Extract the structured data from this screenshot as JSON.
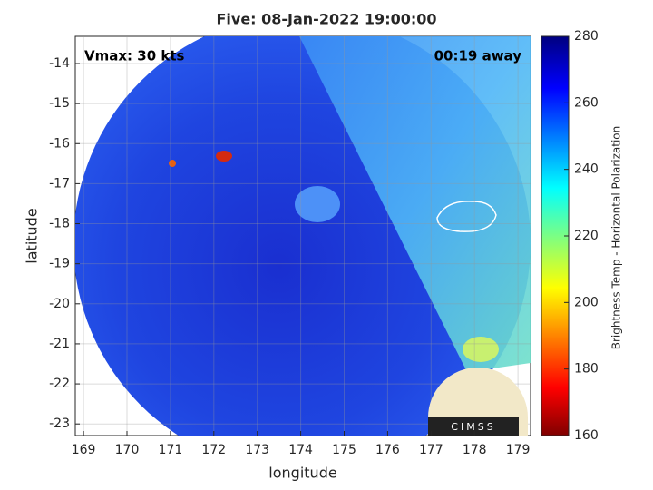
{
  "chart_data": {
    "type": "map",
    "title": "Five: 08-Jan-2022 19:00:00",
    "annotations": [
      "Vmax: 30 kts",
      "00:19 away"
    ],
    "xlabel": "longitude",
    "ylabel": "latitude",
    "xlim": [
      168.81,
      179.29
    ],
    "ylim": [
      -23.29,
      -13.32
    ],
    "xticks": [
      169,
      170,
      171,
      172,
      173,
      174,
      175,
      176,
      177,
      178,
      179
    ],
    "yticks": [
      -14,
      -15,
      -16,
      -17,
      -18,
      -19,
      -20,
      -21,
      -22,
      -23
    ],
    "grid": true,
    "colorbar": {
      "label": "Brightness Temp - Horizontal Polarization",
      "lim": [
        160,
        280
      ],
      "ticks": [
        160,
        180,
        200,
        220,
        240,
        260,
        280
      ]
    },
    "logo": "CIMSS"
  }
}
